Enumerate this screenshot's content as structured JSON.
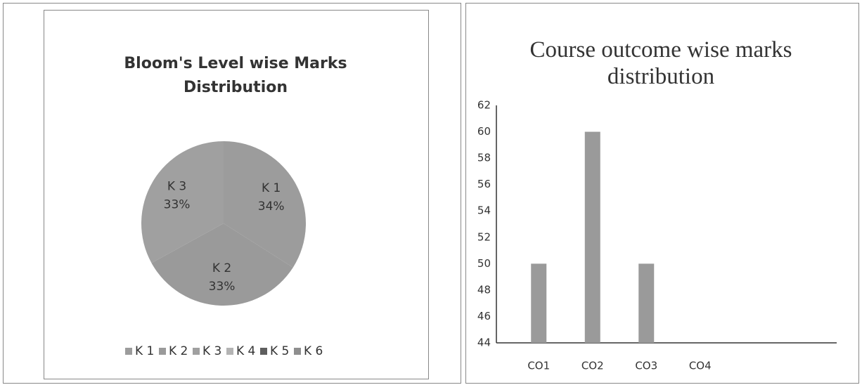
{
  "chart_data": [
    {
      "type": "pie",
      "title": "Bloom's Level wise Marks Distribution",
      "categories": [
        "K 1",
        "K 2",
        "K 3",
        "K 4",
        "K 5",
        "K 6"
      ],
      "values": [
        34,
        33,
        33,
        0,
        0,
        0
      ],
      "value_labels": [
        "34%",
        "33%",
        "33%",
        null,
        null,
        null
      ],
      "colors": [
        "#9c9c9c",
        "#9a9a9a",
        "#a0a0a0",
        "#b4b4b4",
        "#5e5e5e",
        "#8e8e8e"
      ],
      "legend": "bottom"
    },
    {
      "type": "bar",
      "title": "Course outcome wise marks distribution",
      "categories": [
        "CO1",
        "CO2",
        "CO3",
        "CO4"
      ],
      "values": [
        50,
        60,
        50,
        null
      ],
      "color": "#9a9a9a",
      "ylim": [
        44,
        62
      ],
      "yticks": [
        44,
        46,
        48,
        50,
        52,
        54,
        56,
        58,
        60,
        62
      ],
      "grid": false
    }
  ]
}
